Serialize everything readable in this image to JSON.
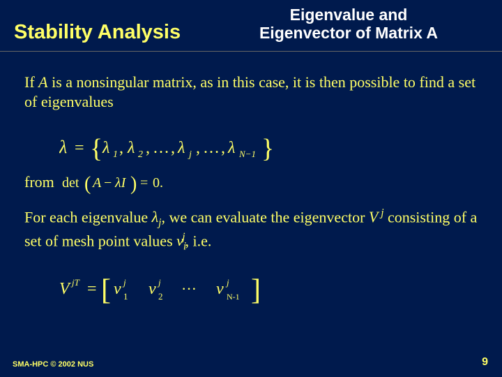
{
  "header": {
    "main_title": "Stability Analysis",
    "secondary_line1": "Eigenvalue and",
    "secondary_line2": "Eigenvector of Matrix A"
  },
  "body": {
    "para1_prefix": "If ",
    "para1_var": "A",
    "para1_rest": " is a nonsingular matrix, as in this case, it is then possible to find a set of eigenvalues",
    "from_word": "from",
    "para2_a": "For each eigenvalue ",
    "para2_b": ", we can evaluate the eigenvector ",
    "para2_c": " consisting of a set of mesh point values ",
    "para2_d": ", i.e."
  },
  "footer": {
    "left": "SMA-HPC © 2002 NUS",
    "page": "9"
  },
  "style": {
    "bg_color": "#001a4d",
    "text_color": "#ffff66",
    "white": "#ffffff"
  }
}
